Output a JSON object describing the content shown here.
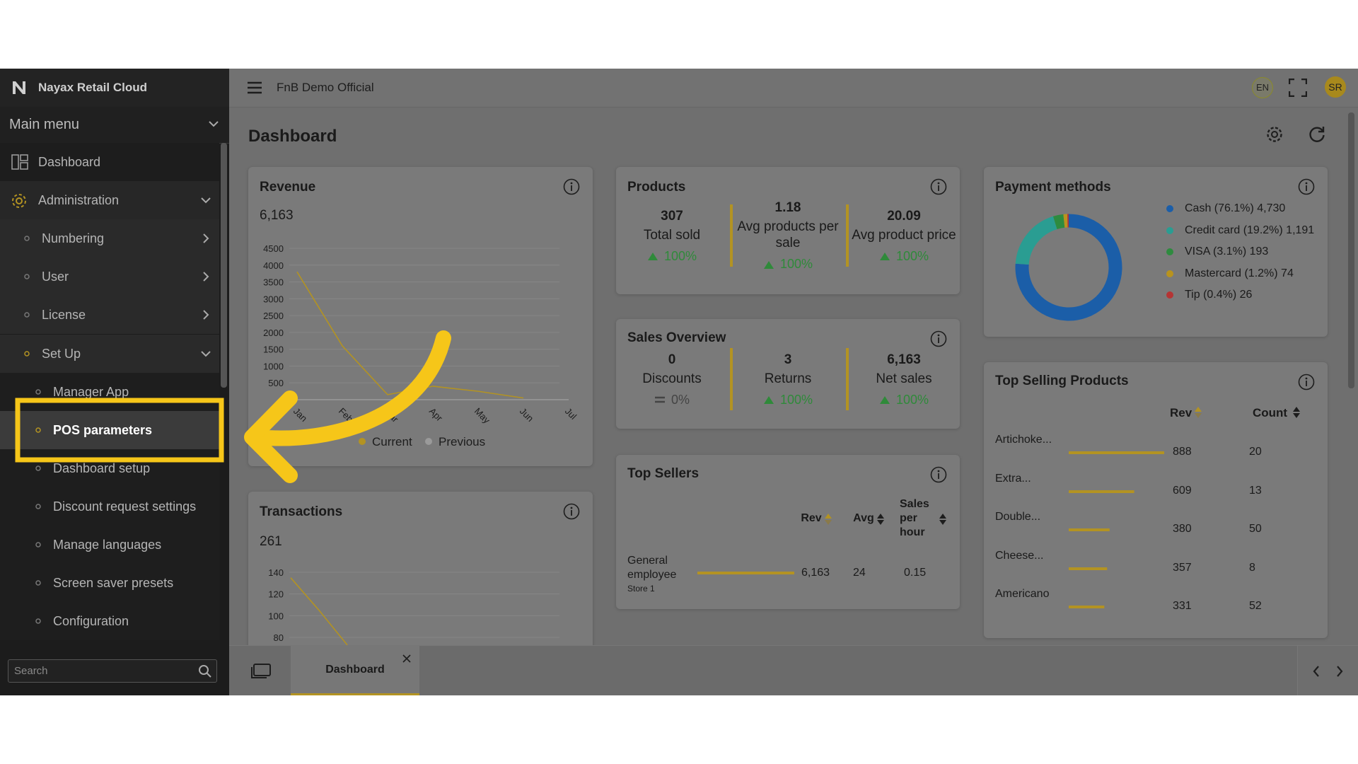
{
  "app": {
    "brand": "Nayax Retail Cloud",
    "workspace": "FnB Demo Official",
    "language": "EN",
    "user_initials": "SR"
  },
  "sidebar": {
    "title": "Main menu",
    "search_placeholder": "Search",
    "items": [
      {
        "label": "Dashboard",
        "level": 0
      },
      {
        "label": "Administration",
        "level": 0,
        "chevron": "down"
      },
      {
        "label": "Numbering",
        "level": 1,
        "chevron": "right"
      },
      {
        "label": "User",
        "level": 1,
        "chevron": "right"
      },
      {
        "label": "License",
        "level": 1,
        "chevron": "right"
      },
      {
        "label": "Set Up",
        "level": 1,
        "chevron": "down"
      },
      {
        "label": "Manager App",
        "level": 2
      },
      {
        "label": "POS parameters",
        "level": 2,
        "active": true
      },
      {
        "label": "Dashboard setup",
        "level": 2
      },
      {
        "label": "Discount request settings",
        "level": 2
      },
      {
        "label": "Manage languages",
        "level": 2
      },
      {
        "label": "Screen saver presets",
        "level": 2
      },
      {
        "label": "Configuration",
        "level": 2
      }
    ]
  },
  "page_title": "Dashboard",
  "revenue": {
    "title": "Revenue",
    "total": "6,163",
    "chart_data": {
      "type": "line",
      "categories": [
        "Jan",
        "Feb",
        "Mar",
        "Apr",
        "May",
        "Jun",
        "Jul"
      ],
      "series": [
        {
          "name": "Current",
          "color": "#b39322",
          "values": [
            3800,
            1600,
            150,
            400,
            250,
            50,
            null
          ]
        },
        {
          "name": "Previous",
          "color": "#9a9a9a",
          "values": [
            0,
            0,
            0,
            0,
            0,
            0,
            0
          ]
        }
      ],
      "ylim": [
        0,
        4500
      ],
      "yticks": [
        500,
        1000,
        1500,
        2000,
        2500,
        3000,
        3500,
        4000,
        4500
      ],
      "grid": true,
      "legend": "bottom"
    }
  },
  "transactions": {
    "title": "Transactions",
    "total": 261,
    "chart_data": {
      "type": "line",
      "categories": [
        null,
        null,
        null
      ],
      "values": [
        135,
        105,
        73
      ],
      "color": "#b39322",
      "ylim": [
        60,
        140
      ],
      "yticks": [
        80,
        100,
        120,
        140
      ],
      "grid": true
    }
  },
  "products": {
    "title": "Products",
    "metrics": [
      {
        "value": 307,
        "label": "Total sold",
        "change": "100%",
        "trend": "up"
      },
      {
        "value": 1.18,
        "label": "Avg products per sale",
        "change": "100%",
        "trend": "up"
      },
      {
        "value": 20.09,
        "label": "Avg product price",
        "change": "100%",
        "trend": "up"
      }
    ]
  },
  "sales_overview": {
    "title": "Sales Overview",
    "metrics": [
      {
        "value": 0,
        "label": "Discounts",
        "change": "0%",
        "trend": "flat"
      },
      {
        "value": 3,
        "label": "Returns",
        "change": "100%",
        "trend": "up"
      },
      {
        "value": "6,163",
        "label": "Net sales",
        "change": "100%",
        "trend": "up"
      }
    ]
  },
  "top_sellers": {
    "title": "Top Sellers",
    "columns": [
      "Rev",
      "Avg",
      "Sales per hour"
    ],
    "rows": [
      {
        "name": "General employee",
        "store": "Store 1",
        "rev": 6163,
        "rev_label": "6,163",
        "avg": 24,
        "sales_per_hour": 0.15
      }
    ]
  },
  "payment_methods": {
    "title": "Payment methods",
    "chart_data": {
      "type": "pie",
      "donut": true,
      "categories": [
        "Cash (76.1%) 4,730",
        "Credit card (19.2%) 1,191",
        "VISA (3.1%) 193",
        "Mastercard (1.2%) 74",
        "Tip (0.4%) 26"
      ],
      "values": [
        4730,
        1191,
        193,
        74,
        26
      ],
      "colors": [
        "#1b5ea8",
        "#2a9d92",
        "#2e8b3f",
        "#b8931e",
        "#b53434"
      ]
    }
  },
  "top_products": {
    "title": "Top Selling Products",
    "columns": [
      "Rev",
      "Count"
    ],
    "bar_color": "#b39322",
    "rows": [
      {
        "name": "Artichoke...",
        "rev": 888,
        "count": 20
      },
      {
        "name": "Extra...",
        "rev": 609,
        "count": 13
      },
      {
        "name": "Double...",
        "rev": 380,
        "count": 50
      },
      {
        "name": "Cheese...",
        "rev": 357,
        "count": 8
      },
      {
        "name": "Americano",
        "rev": 331,
        "count": 52
      }
    ]
  },
  "tabs": [
    {
      "label": "Dashboard",
      "active": true
    }
  ]
}
